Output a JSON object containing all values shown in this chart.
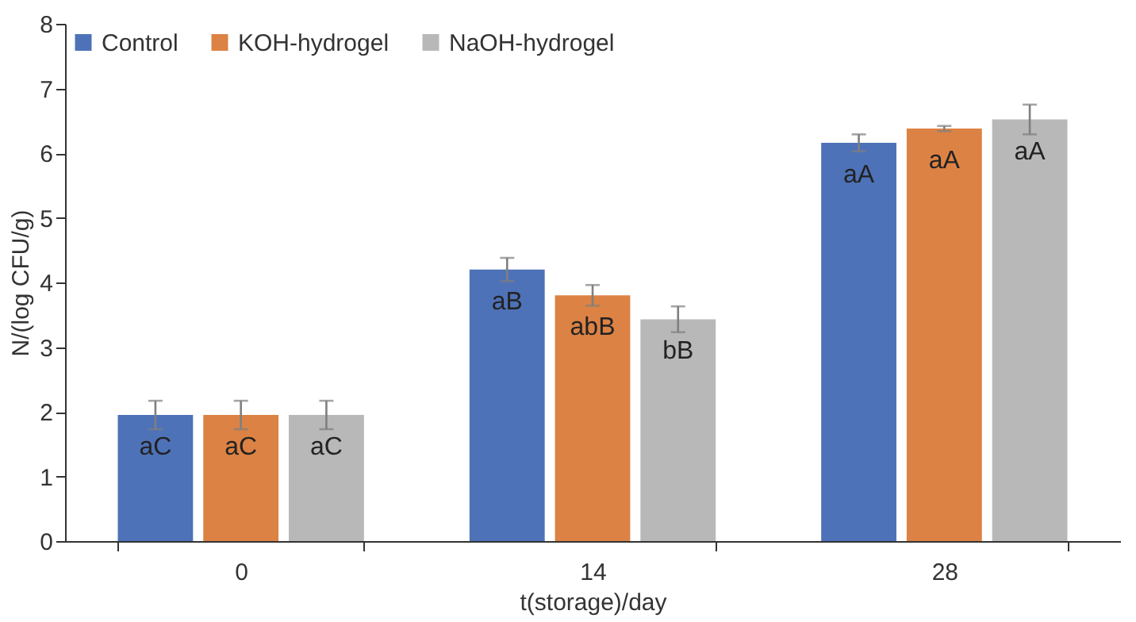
{
  "chart_data": {
    "type": "bar",
    "xlabel": "t(storage)/day",
    "ylabel": "N/(log CFU/g)",
    "categories": [
      "0",
      "14",
      "28"
    ],
    "series": [
      {
        "name": "Control",
        "color": "#4e72b8",
        "values": [
          1.95,
          4.2,
          6.16
        ],
        "errors": [
          0.22,
          0.18,
          0.13
        ],
        "value_labels": [
          "aC",
          "aB",
          "aA"
        ]
      },
      {
        "name": "KOH-hydrogel",
        "color": "#dc8244",
        "values": [
          1.95,
          3.8,
          6.38
        ],
        "errors": [
          0.22,
          0.16,
          0.04
        ],
        "value_labels": [
          "aC",
          "abB",
          "aA"
        ]
      },
      {
        "name": "NaOH-hydrogel",
        "color": "#b8b8b8",
        "values": [
          1.95,
          3.43,
          6.52
        ],
        "errors": [
          0.22,
          0.2,
          0.23
        ],
        "value_labels": [
          "aC",
          "bB",
          "aA"
        ]
      }
    ],
    "ylim": [
      0,
      8
    ],
    "yticks": [
      0,
      1,
      2,
      3,
      4,
      5,
      6,
      7,
      8
    ],
    "grid": false,
    "legend": "top left"
  }
}
